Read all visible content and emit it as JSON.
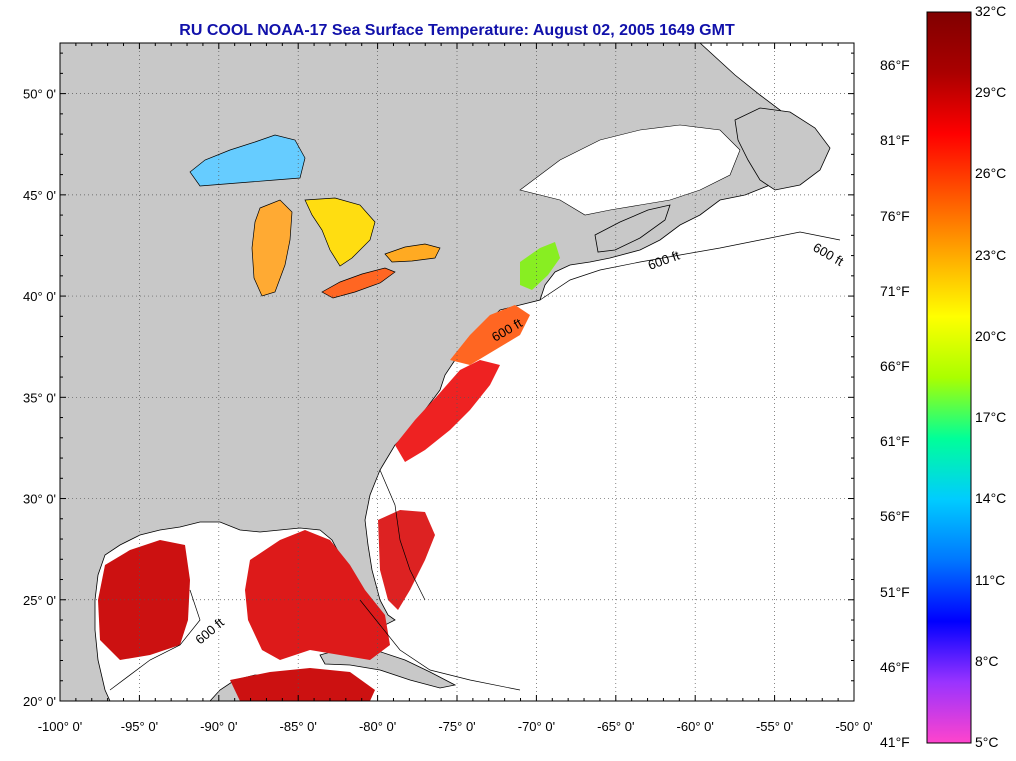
{
  "title": "RU COOL  NOAA-17  Sea Surface Temperature:  August 02, 2005 1649 GMT",
  "map": {
    "lon_range": [
      -100,
      -50
    ],
    "lat_range": [
      20,
      52.5
    ],
    "lat_ticks": [
      {
        "value": 50,
        "label": "50° 0'"
      },
      {
        "value": 45,
        "label": "45° 0'"
      },
      {
        "value": 40,
        "label": "40° 0'"
      },
      {
        "value": 35,
        "label": "35° 0'"
      },
      {
        "value": 30,
        "label": "30° 0'"
      },
      {
        "value": 25,
        "label": "25° 0'"
      },
      {
        "value": 20,
        "label": "20° 0'"
      }
    ],
    "lon_ticks": [
      {
        "value": -100,
        "label": "-100° 0'"
      },
      {
        "value": -95,
        "label": "-95° 0'"
      },
      {
        "value": -90,
        "label": "-90° 0'"
      },
      {
        "value": -85,
        "label": "-85° 0'"
      },
      {
        "value": -80,
        "label": "-80° 0'"
      },
      {
        "value": -75,
        "label": "-75° 0'"
      },
      {
        "value": -70,
        "label": "-70° 0'"
      },
      {
        "value": -65,
        "label": "-65° 0'"
      },
      {
        "value": -60,
        "label": "-60° 0'"
      },
      {
        "value": -55,
        "label": "-55° 0'"
      },
      {
        "value": -50,
        "label": "-50° 0'"
      }
    ],
    "grid": "dotted",
    "land_color": "#c8c8c8",
    "no_data_color": "#ffffff",
    "contour_label": "600 ft"
  },
  "colorbar": {
    "celsius_range": [
      5,
      32
    ],
    "fahrenheit_labels": [
      "86°F",
      "81°F",
      "76°F",
      "71°F",
      "66°F",
      "61°F",
      "56°F",
      "51°F",
      "46°F",
      "41°F"
    ],
    "fahrenheit_values": [
      86,
      81,
      76,
      71,
      66,
      61,
      56,
      51,
      46,
      41
    ],
    "celsius_labels": [
      "32°C",
      "29°C",
      "26°C",
      "23°C",
      "20°C",
      "17°C",
      "14°C",
      "11°C",
      "8°C",
      "5°C"
    ],
    "celsius_values": [
      32,
      29,
      26,
      23,
      20,
      17,
      14,
      11,
      8,
      5
    ],
    "colors": [
      "#ff44cc",
      "#9933ff",
      "#0000ff",
      "#0077ff",
      "#00ccff",
      "#00ff99",
      "#aaff00",
      "#ffff00",
      "#ffaa00",
      "#ff5500",
      "#ff0000",
      "#aa0000",
      "#800000"
    ]
  }
}
